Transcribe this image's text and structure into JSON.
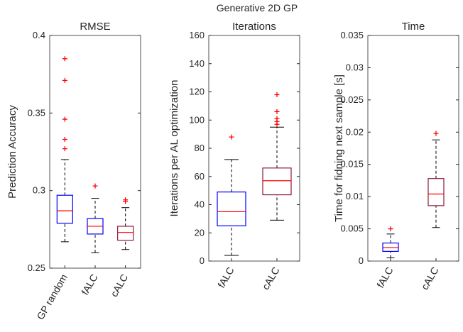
{
  "title": "Generative 2D GP",
  "chart_data": [
    {
      "type": "box",
      "title": "RMSE",
      "ylabel": "Prediction Accuracy",
      "categories": [
        "GP random",
        "fALC",
        "cALC"
      ],
      "boxes": [
        {
          "whislo": 0.267,
          "q1": 0.279,
          "med": 0.287,
          "q3": 0.297,
          "whishi": 0.32,
          "fliers": [
            0.385,
            0.371,
            0.346,
            0.333,
            0.327
          ],
          "color": "#0000ff"
        },
        {
          "whislo": 0.26,
          "q1": 0.272,
          "med": 0.277,
          "q3": 0.282,
          "whishi": 0.295,
          "fliers": [
            0.303
          ],
          "color": "#0000ff"
        },
        {
          "whislo": 0.262,
          "q1": 0.268,
          "med": 0.273,
          "q3": 0.277,
          "whishi": 0.289,
          "fliers": [
            0.294,
            0.293
          ],
          "color": "#8b1a3a"
        }
      ],
      "median_color": "#ff0000",
      "flier_color": "#ff0000",
      "ylim": [
        0.25,
        0.4
      ],
      "yticks": [
        0.25,
        0.3,
        0.35,
        0.4
      ]
    },
    {
      "type": "box",
      "title": "Iterations",
      "ylabel": "Iterations per AL optimization",
      "categories": [
        "fALC",
        "cALC"
      ],
      "boxes": [
        {
          "whislo": 4,
          "q1": 25,
          "med": 35,
          "q3": 49,
          "whishi": 72,
          "fliers": [
            88
          ],
          "color": "#0000ff"
        },
        {
          "whislo": 29,
          "q1": 47,
          "med": 57,
          "q3": 66,
          "whishi": 95,
          "fliers": [
            97,
            99,
            101,
            106,
            118
          ],
          "color": "#8b1a3a"
        }
      ],
      "median_color": "#ff0000",
      "flier_color": "#ff0000",
      "ylim": [
        0,
        160
      ],
      "yticks": [
        0,
        20,
        40,
        60,
        80,
        100,
        120,
        140,
        160
      ]
    },
    {
      "type": "box",
      "title": "Time",
      "ylabel": "Time for fidning next sample [s]",
      "categories": [
        "fALC",
        "cALC"
      ],
      "boxes": [
        {
          "whislo": 0.0005,
          "q1": 0.0015,
          "med": 0.0021,
          "q3": 0.0028,
          "whishi": 0.0042,
          "fliers": [
            0.005
          ],
          "color": "#0000ff"
        },
        {
          "whislo": 0.0052,
          "q1": 0.0086,
          "med": 0.0104,
          "q3": 0.0128,
          "whishi": 0.0188,
          "fliers": [
            0.0198
          ],
          "color": "#8b1a3a"
        }
      ],
      "median_color": "#ff0000",
      "flier_color": "#ff0000",
      "ylim": [
        0,
        0.035
      ],
      "yticks": [
        0,
        0.005,
        0.01,
        0.015,
        0.02,
        0.025,
        0.03,
        0.035
      ]
    }
  ]
}
